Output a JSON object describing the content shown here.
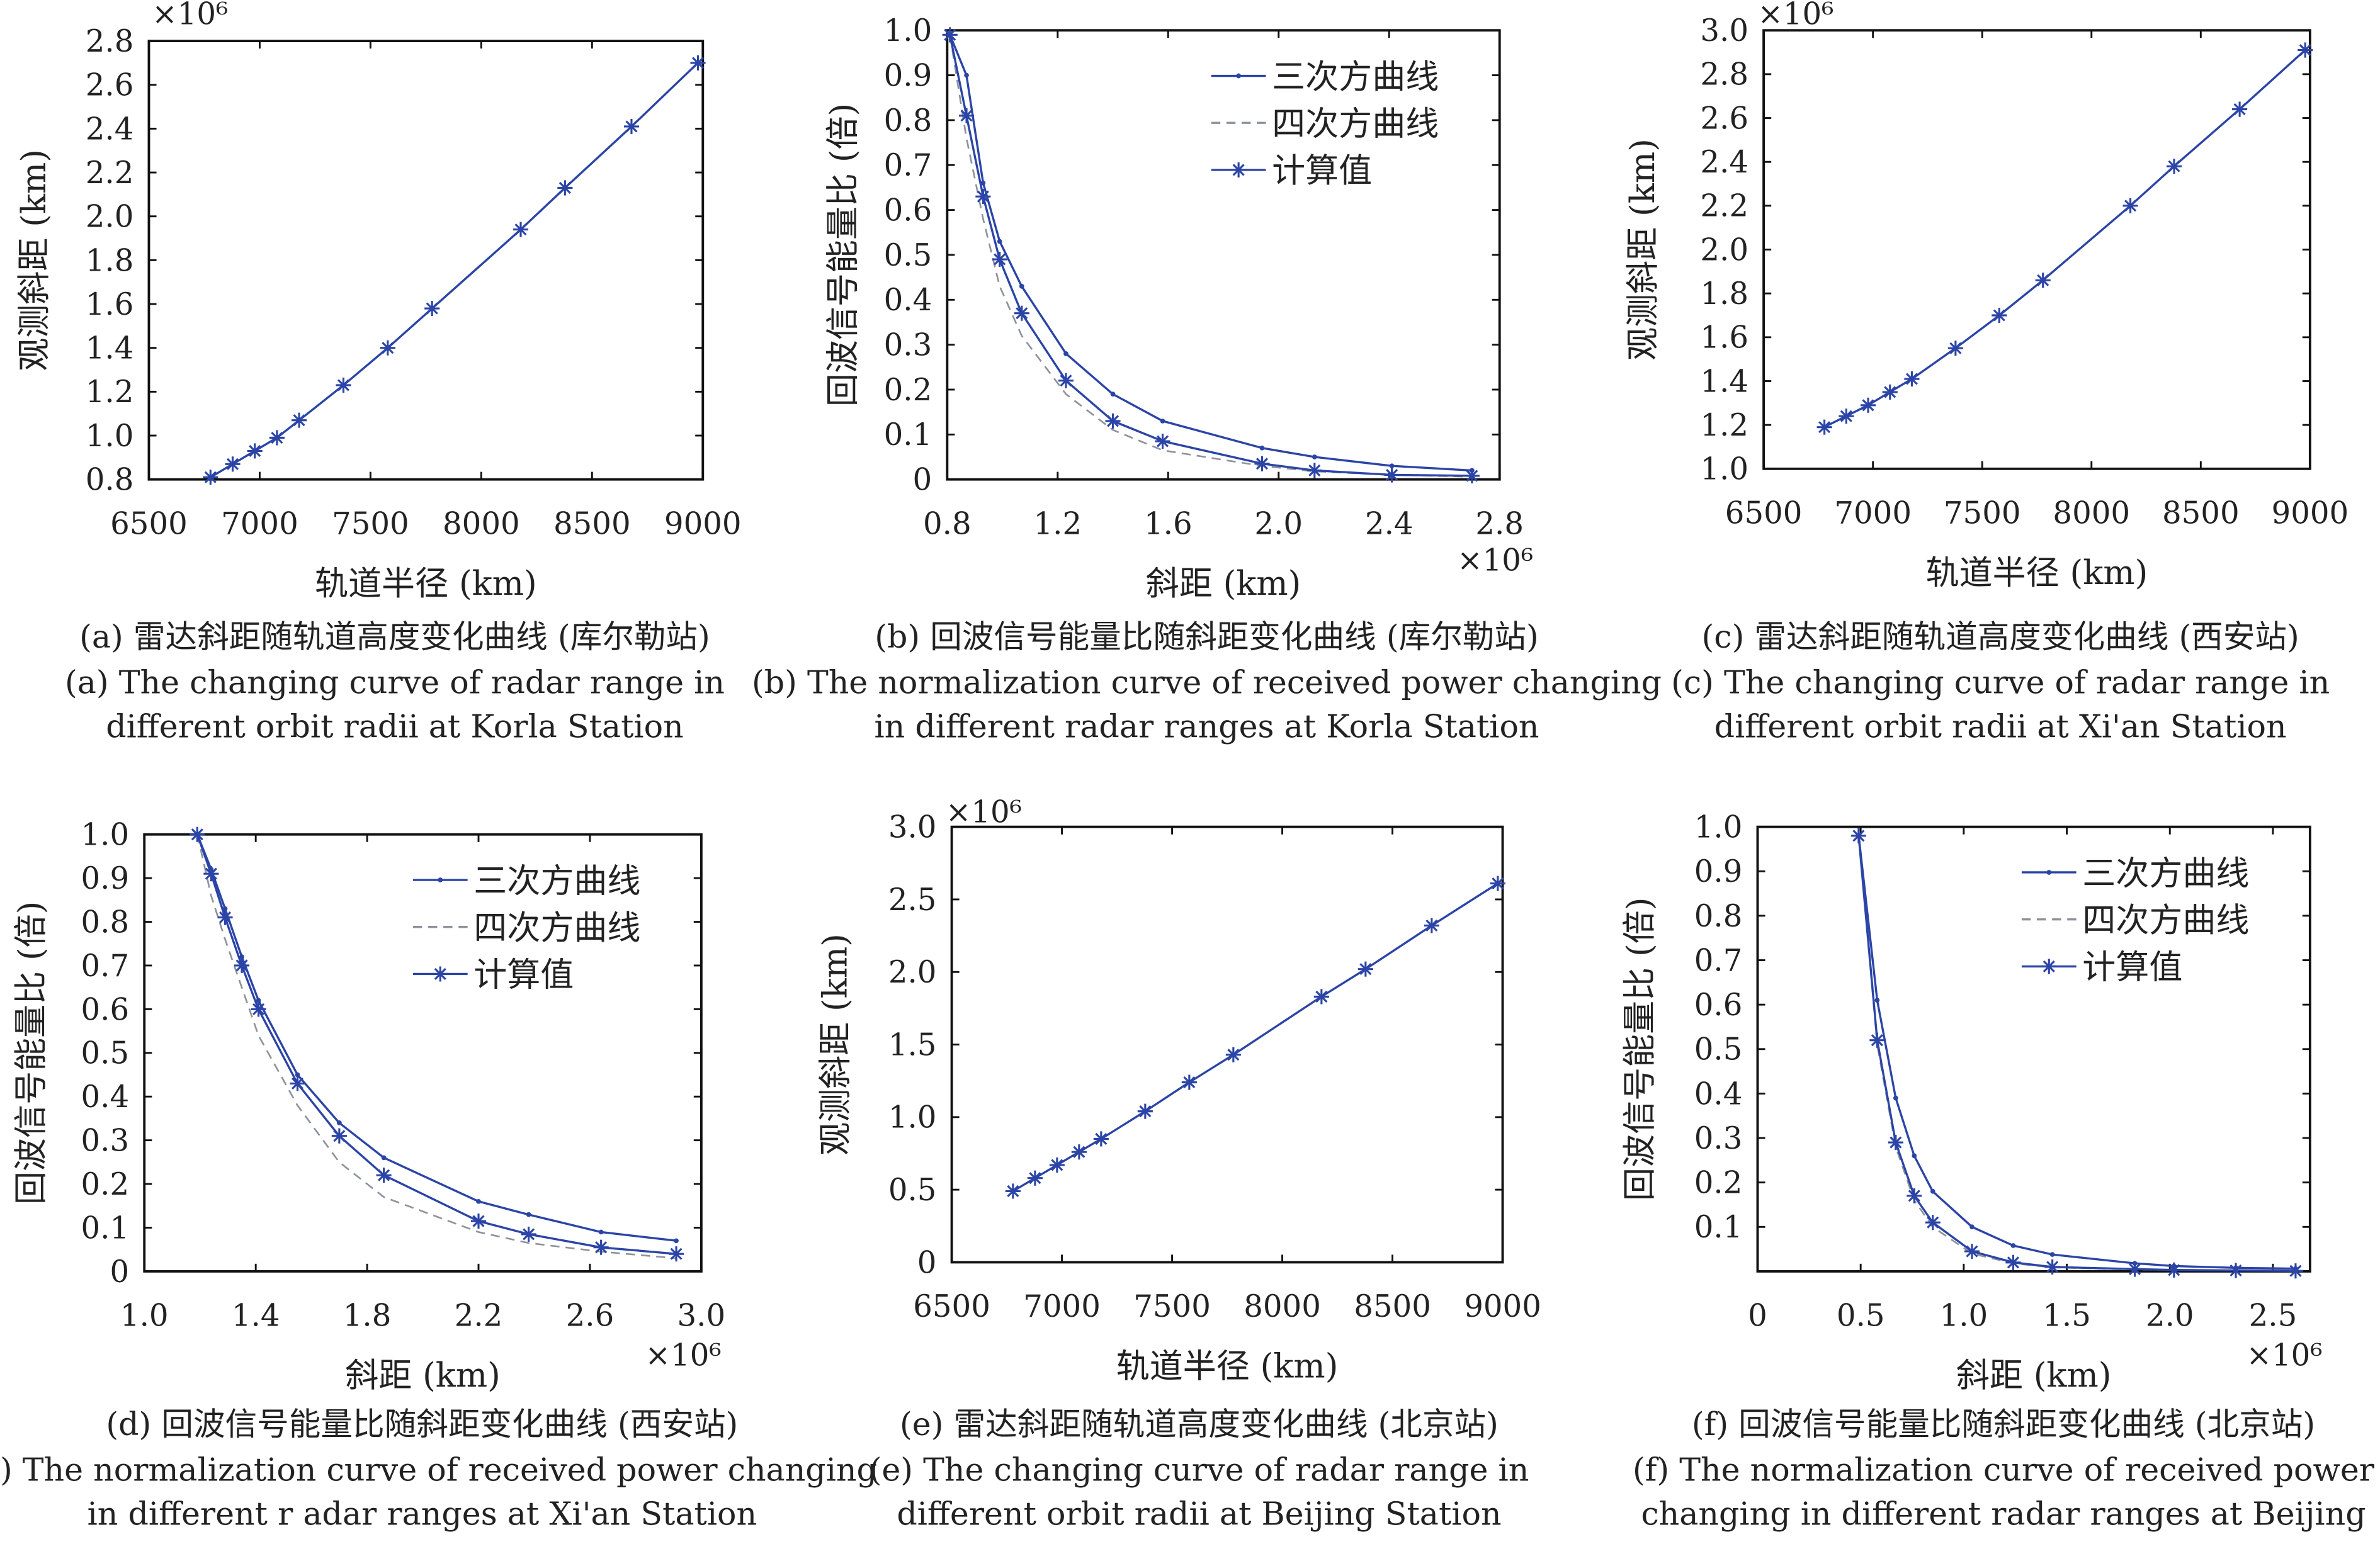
{
  "colors": {
    "series": "#2b44a6",
    "quartic": "#8d929c",
    "axis": "#111111"
  },
  "legend_labels": {
    "cubic": "三次方曲线",
    "quartic": "四次方曲线",
    "computed": "计算值"
  },
  "chart_data": [
    {
      "id": "a",
      "type": "line",
      "caption_zh": "(a) 雷达斜距随轨道高度变化曲线 (库尔勒站)",
      "caption_en": [
        "(a) The changing curve of  radar range in",
        "different orbit radii at Korla Station"
      ],
      "xlabel": "轨道半径 (km)",
      "ylabel": "观测斜距 (km)",
      "exponent": "×10⁶",
      "exponent_axis": "y",
      "xlim": [
        6500,
        9000
      ],
      "ylim": [
        0.8,
        2.8
      ],
      "xticks": [
        "6500",
        "7000",
        "7500",
        "8000",
        "8500",
        "9000"
      ],
      "yticks": [
        "0.8",
        "1.0",
        "1.2",
        "1.4",
        "1.6",
        "1.8",
        "2.0",
        "2.2",
        "2.4",
        "2.6",
        "2.8"
      ],
      "legend": false,
      "series": [
        {
          "name": "计算值",
          "style": "star",
          "x": [
            6778,
            6878,
            6978,
            7078,
            7178,
            7378,
            7578,
            7778,
            8178,
            8378,
            8678,
            8978
          ],
          "y": [
            0.81,
            0.87,
            0.93,
            0.99,
            1.07,
            1.23,
            1.4,
            1.58,
            1.94,
            2.13,
            2.41,
            2.7
          ]
        }
      ]
    },
    {
      "id": "b",
      "type": "line",
      "caption_zh": "(b) 回波信号能量比随斜距变化曲线 (库尔勒站)",
      "caption_en": [
        "(b) The  normalization curve of  received power changing",
        "in different radar ranges at Korla Station"
      ],
      "xlabel": "斜距 (km)",
      "ylabel": "回波信号能量比 (倍)",
      "exponent": "×10⁶",
      "exponent_axis": "x",
      "xlim": [
        0.8,
        2.8
      ],
      "ylim": [
        0,
        1.0
      ],
      "xticks": [
        "0.8",
        "1.2",
        "1.6",
        "2.0",
        "2.4",
        "2.8"
      ],
      "yticks": [
        "0",
        "0.1",
        "0.2",
        "0.3",
        "0.4",
        "0.5",
        "0.6",
        "0.7",
        "0.8",
        "0.9",
        "1.0"
      ],
      "legend": true,
      "series": [
        {
          "name": "三次方曲线",
          "style": "dot",
          "x": [
            0.81,
            0.87,
            0.93,
            0.99,
            1.07,
            1.23,
            1.4,
            1.58,
            1.94,
            2.13,
            2.41,
            2.7
          ],
          "y": [
            0.99,
            0.9,
            0.66,
            0.53,
            0.43,
            0.28,
            0.19,
            0.13,
            0.07,
            0.05,
            0.03,
            0.02
          ]
        },
        {
          "name": "四次方曲线",
          "style": "dash",
          "x": [
            0.81,
            0.87,
            0.93,
            0.99,
            1.07,
            1.23,
            1.4,
            1.58,
            1.94,
            2.13,
            2.41,
            2.7
          ],
          "y": [
            0.99,
            0.76,
            0.58,
            0.43,
            0.32,
            0.19,
            0.11,
            0.065,
            0.03,
            0.018,
            0.01,
            0.006
          ]
        },
        {
          "name": "计算值",
          "style": "star",
          "x": [
            0.81,
            0.87,
            0.93,
            0.99,
            1.07,
            1.23,
            1.4,
            1.58,
            1.94,
            2.13,
            2.41,
            2.7
          ],
          "y": [
            0.99,
            0.81,
            0.63,
            0.49,
            0.37,
            0.22,
            0.13,
            0.085,
            0.035,
            0.02,
            0.01,
            0.008
          ]
        }
      ]
    },
    {
      "id": "c",
      "type": "line",
      "caption_zh": "(c) 雷达斜距随轨道高度变化曲线 (西安站)",
      "caption_en": [
        "(c) The changing curve of  radar range in",
        "different orbit radii at Xi'an Station"
      ],
      "xlabel": "轨道半径 (km)",
      "ylabel": "观测斜距 (km)",
      "exponent": "×10⁶",
      "exponent_axis": "y",
      "xlim": [
        6500,
        9000
      ],
      "ylim": [
        1.0,
        3.0
      ],
      "xticks": [
        "6500",
        "7000",
        "7500",
        "8000",
        "8500",
        "9000"
      ],
      "yticks": [
        "1.0",
        "1.2",
        "1.4",
        "1.6",
        "1.8",
        "2.0",
        "2.2",
        "2.4",
        "2.6",
        "2.8",
        "3.0"
      ],
      "legend": false,
      "series": [
        {
          "name": "计算值",
          "style": "star",
          "x": [
            6778,
            6878,
            6978,
            7078,
            7178,
            7378,
            7578,
            7778,
            8178,
            8378,
            8678,
            8978
          ],
          "y": [
            1.19,
            1.24,
            1.29,
            1.35,
            1.41,
            1.55,
            1.7,
            1.86,
            2.2,
            2.38,
            2.64,
            2.91
          ]
        }
      ]
    },
    {
      "id": "d",
      "type": "line",
      "caption_zh": "(d) 回波信号能量比随斜距变化曲线 (西安站)",
      "caption_en": [
        "(d) The  normalization curve of  received power changing",
        "in different r adar ranges at Xi'an Station"
      ],
      "xlabel": "斜距 (km)",
      "ylabel": "回波信号能量比 (倍)",
      "exponent": "×10⁶",
      "exponent_axis": "x",
      "xlim": [
        1.0,
        3.0
      ],
      "ylim": [
        0,
        1.0
      ],
      "xticks": [
        "1.0",
        "1.4",
        "1.8",
        "2.2",
        "2.6",
        "3.0"
      ],
      "yticks": [
        "0",
        "0.1",
        "0.2",
        "0.3",
        "0.4",
        "0.5",
        "0.6",
        "0.7",
        "0.8",
        "0.9",
        "1.0"
      ],
      "legend": true,
      "series": [
        {
          "name": "三次方曲线",
          "style": "dot",
          "x": [
            1.19,
            1.24,
            1.29,
            1.35,
            1.41,
            1.55,
            1.7,
            1.86,
            2.2,
            2.38,
            2.64,
            2.91
          ],
          "y": [
            1.0,
            0.92,
            0.83,
            0.72,
            0.62,
            0.45,
            0.34,
            0.26,
            0.16,
            0.13,
            0.09,
            0.07
          ]
        },
        {
          "name": "四次方曲线",
          "style": "dash",
          "x": [
            1.19,
            1.24,
            1.29,
            1.35,
            1.41,
            1.55,
            1.7,
            1.86,
            2.2,
            2.38,
            2.64,
            2.91
          ],
          "y": [
            1.0,
            0.86,
            0.76,
            0.65,
            0.54,
            0.38,
            0.25,
            0.17,
            0.09,
            0.065,
            0.045,
            0.03
          ]
        },
        {
          "name": "计算值",
          "style": "star",
          "x": [
            1.19,
            1.24,
            1.29,
            1.35,
            1.41,
            1.55,
            1.7,
            1.86,
            2.2,
            2.38,
            2.64,
            2.91
          ],
          "y": [
            1.0,
            0.91,
            0.81,
            0.7,
            0.6,
            0.43,
            0.31,
            0.22,
            0.115,
            0.085,
            0.055,
            0.04
          ]
        }
      ]
    },
    {
      "id": "e",
      "type": "line",
      "caption_zh": "(e) 雷达斜距随轨道高度变化曲线 (北京站)",
      "caption_en": [
        "(e) The changing curve of  radar range in",
        "different orbit radii at Beijing Station"
      ],
      "xlabel": "轨道半径 (km)",
      "ylabel": "观测斜距 (km)",
      "exponent": "×10⁶",
      "exponent_axis": "y",
      "xlim": [
        6500,
        9000
      ],
      "ylim": [
        0,
        3.0
      ],
      "xticks": [
        "6500",
        "7000",
        "7500",
        "8000",
        "8500",
        "9000"
      ],
      "yticks": [
        "0",
        "0.5",
        "1.0",
        "1.5",
        "2.0",
        "2.5",
        "3.0"
      ],
      "legend": false,
      "series": [
        {
          "name": "计算值",
          "style": "star",
          "x": [
            6778,
            6878,
            6978,
            7078,
            7178,
            7378,
            7578,
            7778,
            8178,
            8378,
            8678,
            8978
          ],
          "y": [
            0.49,
            0.58,
            0.67,
            0.76,
            0.85,
            1.04,
            1.24,
            1.43,
            1.83,
            2.02,
            2.32,
            2.61
          ]
        }
      ]
    },
    {
      "id": "f",
      "type": "line",
      "caption_zh": "(f) 回波信号能量比随斜距变化曲线 (北京站)",
      "caption_en": [
        "(f) The  normalization curve of  received power",
        "changing in different radar ranges at Beijing"
      ],
      "xlabel": "斜距 (km)",
      "ylabel": "回波信号能量比 (倍)",
      "exponent": "×10⁶",
      "exponent_axis": "x",
      "xlim": [
        0,
        2.68
      ],
      "ylim": [
        0,
        1.0
      ],
      "xticks": [
        "0",
        "0.5",
        "1.0",
        "1.5",
        "2.0",
        "2.5"
      ],
      "yticks": [
        "0.1",
        "0.2",
        "0.3",
        "0.4",
        "0.5",
        "0.6",
        "0.7",
        "0.8",
        "0.9",
        "1.0"
      ],
      "legend": true,
      "series": [
        {
          "name": "三次方曲线",
          "style": "dot",
          "x": [
            0.49,
            0.58,
            0.67,
            0.76,
            0.85,
            1.04,
            1.24,
            1.43,
            1.83,
            2.02,
            2.32,
            2.61
          ],
          "y": [
            0.98,
            0.61,
            0.39,
            0.26,
            0.18,
            0.1,
            0.058,
            0.038,
            0.018,
            0.012,
            0.008,
            0.006
          ]
        },
        {
          "name": "四次方曲线",
          "style": "dash",
          "x": [
            0.49,
            0.58,
            0.67,
            0.76,
            0.85,
            1.04,
            1.24,
            1.43,
            1.83,
            2.02,
            2.32,
            2.61
          ],
          "y": [
            0.98,
            0.51,
            0.28,
            0.16,
            0.1,
            0.04,
            0.018,
            0.009,
            0.004,
            0.003,
            0.002,
            0.001
          ]
        },
        {
          "name": "计算值",
          "style": "star",
          "x": [
            0.49,
            0.58,
            0.67,
            0.76,
            0.85,
            1.04,
            1.24,
            1.43,
            1.83,
            2.02,
            2.32,
            2.61
          ],
          "y": [
            0.98,
            0.52,
            0.29,
            0.17,
            0.11,
            0.045,
            0.02,
            0.01,
            0.005,
            0.003,
            0.002,
            0.001
          ]
        }
      ]
    }
  ]
}
